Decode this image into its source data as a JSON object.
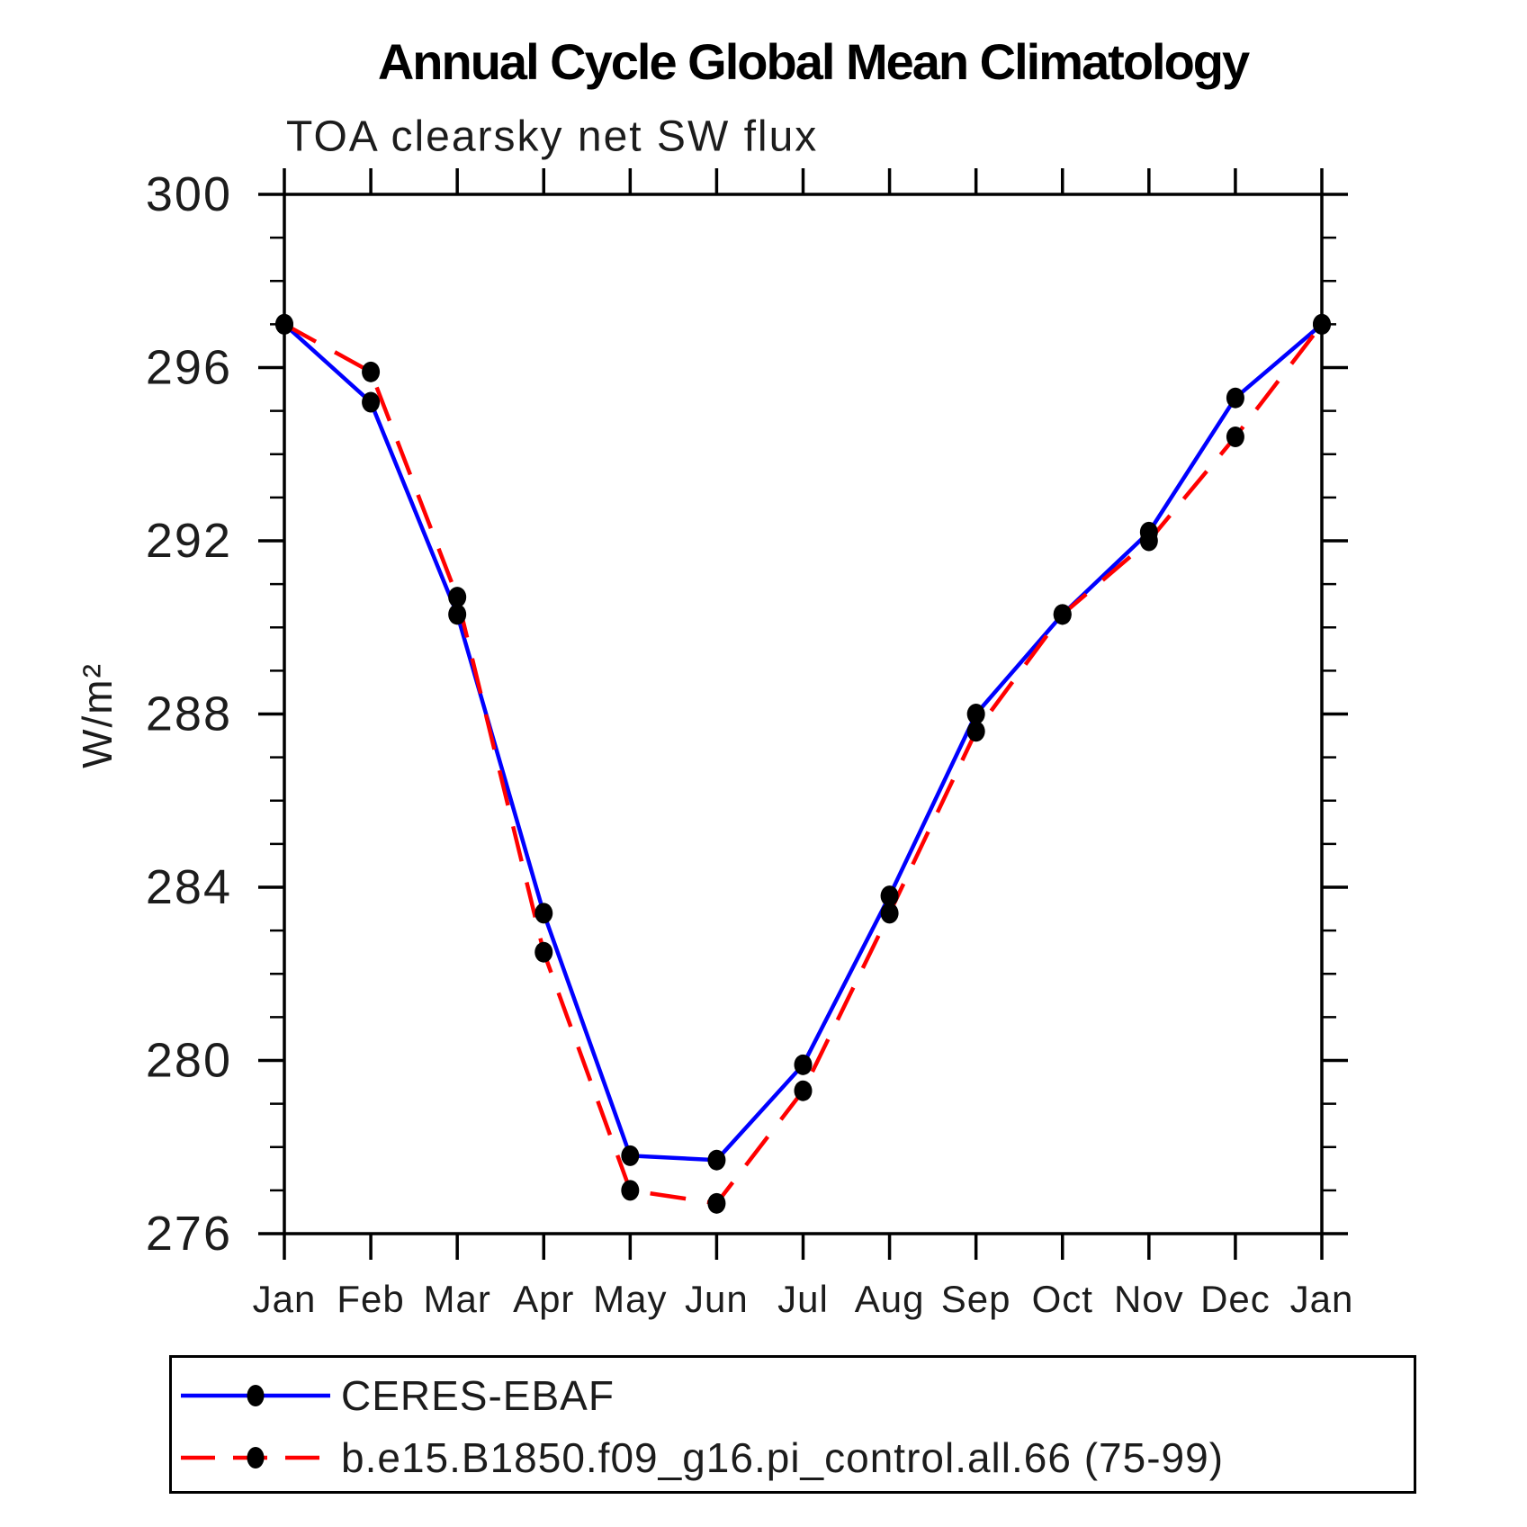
{
  "header": {
    "title": "Annual Cycle Global Mean Climatology",
    "subtitle": "TOA clearsky net SW flux"
  },
  "chart_data": {
    "type": "line",
    "title": "Annual Cycle Global Mean Climatology",
    "subtitle": "TOA clearsky net SW flux",
    "xlabel": "",
    "ylabel": "W/m²",
    "categories": [
      "Jan",
      "Feb",
      "Mar",
      "Apr",
      "May",
      "Jun",
      "Jul",
      "Aug",
      "Sep",
      "Oct",
      "Nov",
      "Dec",
      "Jan"
    ],
    "ylim": [
      276,
      300
    ],
    "ytick_major": [
      276,
      280,
      284,
      288,
      292,
      296,
      300
    ],
    "ytick_minor_step": 1,
    "grid": false,
    "tick_direction": "out",
    "legend_position": "bottom-left-box",
    "marker_color": "#000000",
    "series": [
      {
        "name": "CERES-EBAF",
        "color": "#0000ff",
        "line": "solid",
        "dash": "none",
        "marker": "filled-circle",
        "values": [
          297.0,
          295.2,
          290.3,
          283.4,
          277.8,
          277.7,
          279.9,
          283.8,
          288.0,
          290.3,
          292.2,
          295.3,
          297.0
        ]
      },
      {
        "name": "b.e15.B1850.f09_g16.pi_control.all.66 (75-99)",
        "color": "#ff0000",
        "line": "dashed",
        "dash": "40 24",
        "marker": "filled-circle",
        "values": [
          297.0,
          295.9,
          290.7,
          282.5,
          277.0,
          276.7,
          279.3,
          283.4,
          287.6,
          290.3,
          292.0,
          294.4,
          297.0
        ]
      }
    ]
  }
}
